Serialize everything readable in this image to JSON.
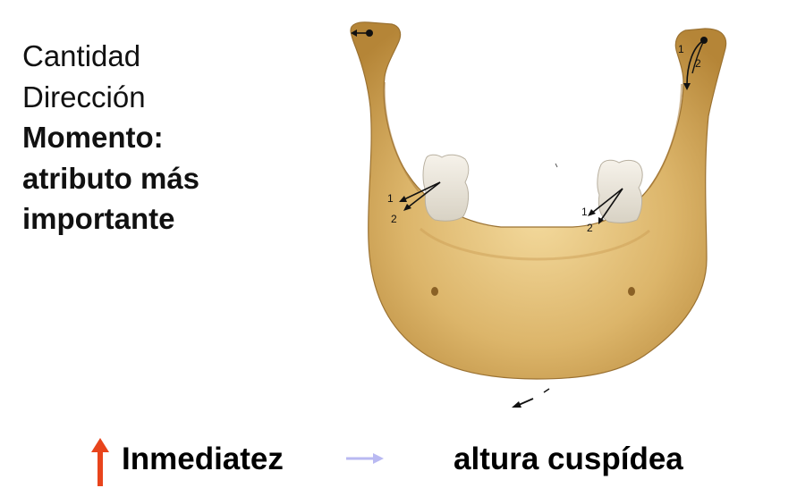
{
  "text_block": {
    "line1": "Cantidad",
    "line2": "Dirección",
    "line3": "Momento:",
    "line4": "atributo más",
    "line5": "importante"
  },
  "figure": {
    "force_labels": {
      "left_condyle": "",
      "right_condyle_1": "1",
      "right_condyle_2": "2",
      "left_molar_1": "1",
      "left_molar_2": "2",
      "right_molar_1": "1",
      "right_molar_2": "2"
    }
  },
  "bottom": {
    "label_left": "Inmediatez",
    "label_right": "altura cuspídea"
  },
  "colors": {
    "bone": "#d8b46a",
    "bone_shadow": "#b98b3f",
    "tooth": "#ece7dc",
    "arrow_up": "#e8441c",
    "arrow_right": "#b9b9f2"
  }
}
